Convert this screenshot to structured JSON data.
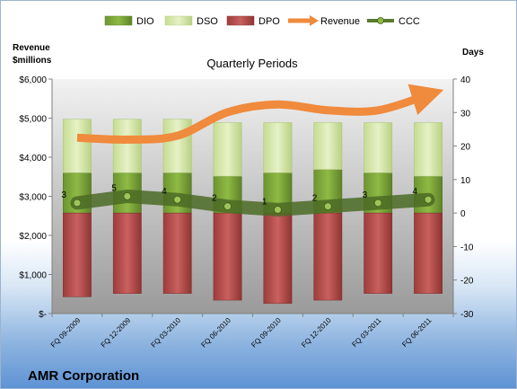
{
  "chart_data": {
    "type": "bar",
    "title": "Quarterly Periods",
    "company": "AMR Corporation",
    "categories": [
      "FQ 09-2009",
      "FQ 12-2009",
      "FQ 03-2010",
      "FQ 06-2010",
      "FQ 09-2010",
      "FQ 12-2010",
      "FQ 03-2011",
      "FQ 06-2011"
    ],
    "left_axis": {
      "label_line1": "Revenue",
      "label_line2": "$millions",
      "ylim": [
        0,
        6000
      ],
      "ticks": [
        0,
        1000,
        2000,
        3000,
        4000,
        5000,
        6000
      ],
      "tick_labels": [
        "$-",
        "$1,000",
        "$2,000",
        "$3,000",
        "$4,000",
        "$5,000",
        "$6,000"
      ]
    },
    "right_axis": {
      "label": "Days",
      "ylim": [
        -30,
        40
      ],
      "ticks": [
        -30,
        -20,
        -10,
        0,
        10,
        20,
        30,
        40
      ],
      "tick_labels": [
        "-30",
        "-20",
        "-10",
        "0",
        "10",
        "20",
        "30",
        "40"
      ]
    },
    "legend": [
      "DIO",
      "DSO",
      "DPO",
      "Revenue",
      "CCC"
    ],
    "legend_position": "top",
    "grid": false,
    "series": [
      {
        "name": "DIO",
        "type": "bar",
        "axis": "right",
        "color": "#7ea73a",
        "values": [
          12,
          12,
          12,
          11,
          12,
          13,
          12,
          11
        ]
      },
      {
        "name": "DSO",
        "type": "bar",
        "axis": "right",
        "color": "#d7e8ab",
        "values": [
          16,
          16,
          16,
          16,
          15,
          14,
          15,
          16
        ]
      },
      {
        "name": "DPO",
        "type": "bar",
        "axis": "right",
        "color": "#b44e4c",
        "values": [
          -25,
          -24,
          -24,
          -26,
          -27,
          -26,
          -24,
          -24
        ]
      },
      {
        "name": "Revenue",
        "type": "line",
        "axis": "left",
        "color": "#f08a3c",
        "values": [
          4500,
          4450,
          4550,
          5150,
          5350,
          5200,
          5200,
          5600
        ]
      },
      {
        "name": "CCC",
        "type": "line",
        "axis": "right",
        "color": "#5b7a2e",
        "values": [
          3,
          5,
          4,
          2,
          1,
          2,
          3,
          4
        ],
        "data_labels": [
          "3",
          "5",
          "4",
          "2",
          "1",
          "2",
          "3",
          "4"
        ]
      }
    ]
  }
}
